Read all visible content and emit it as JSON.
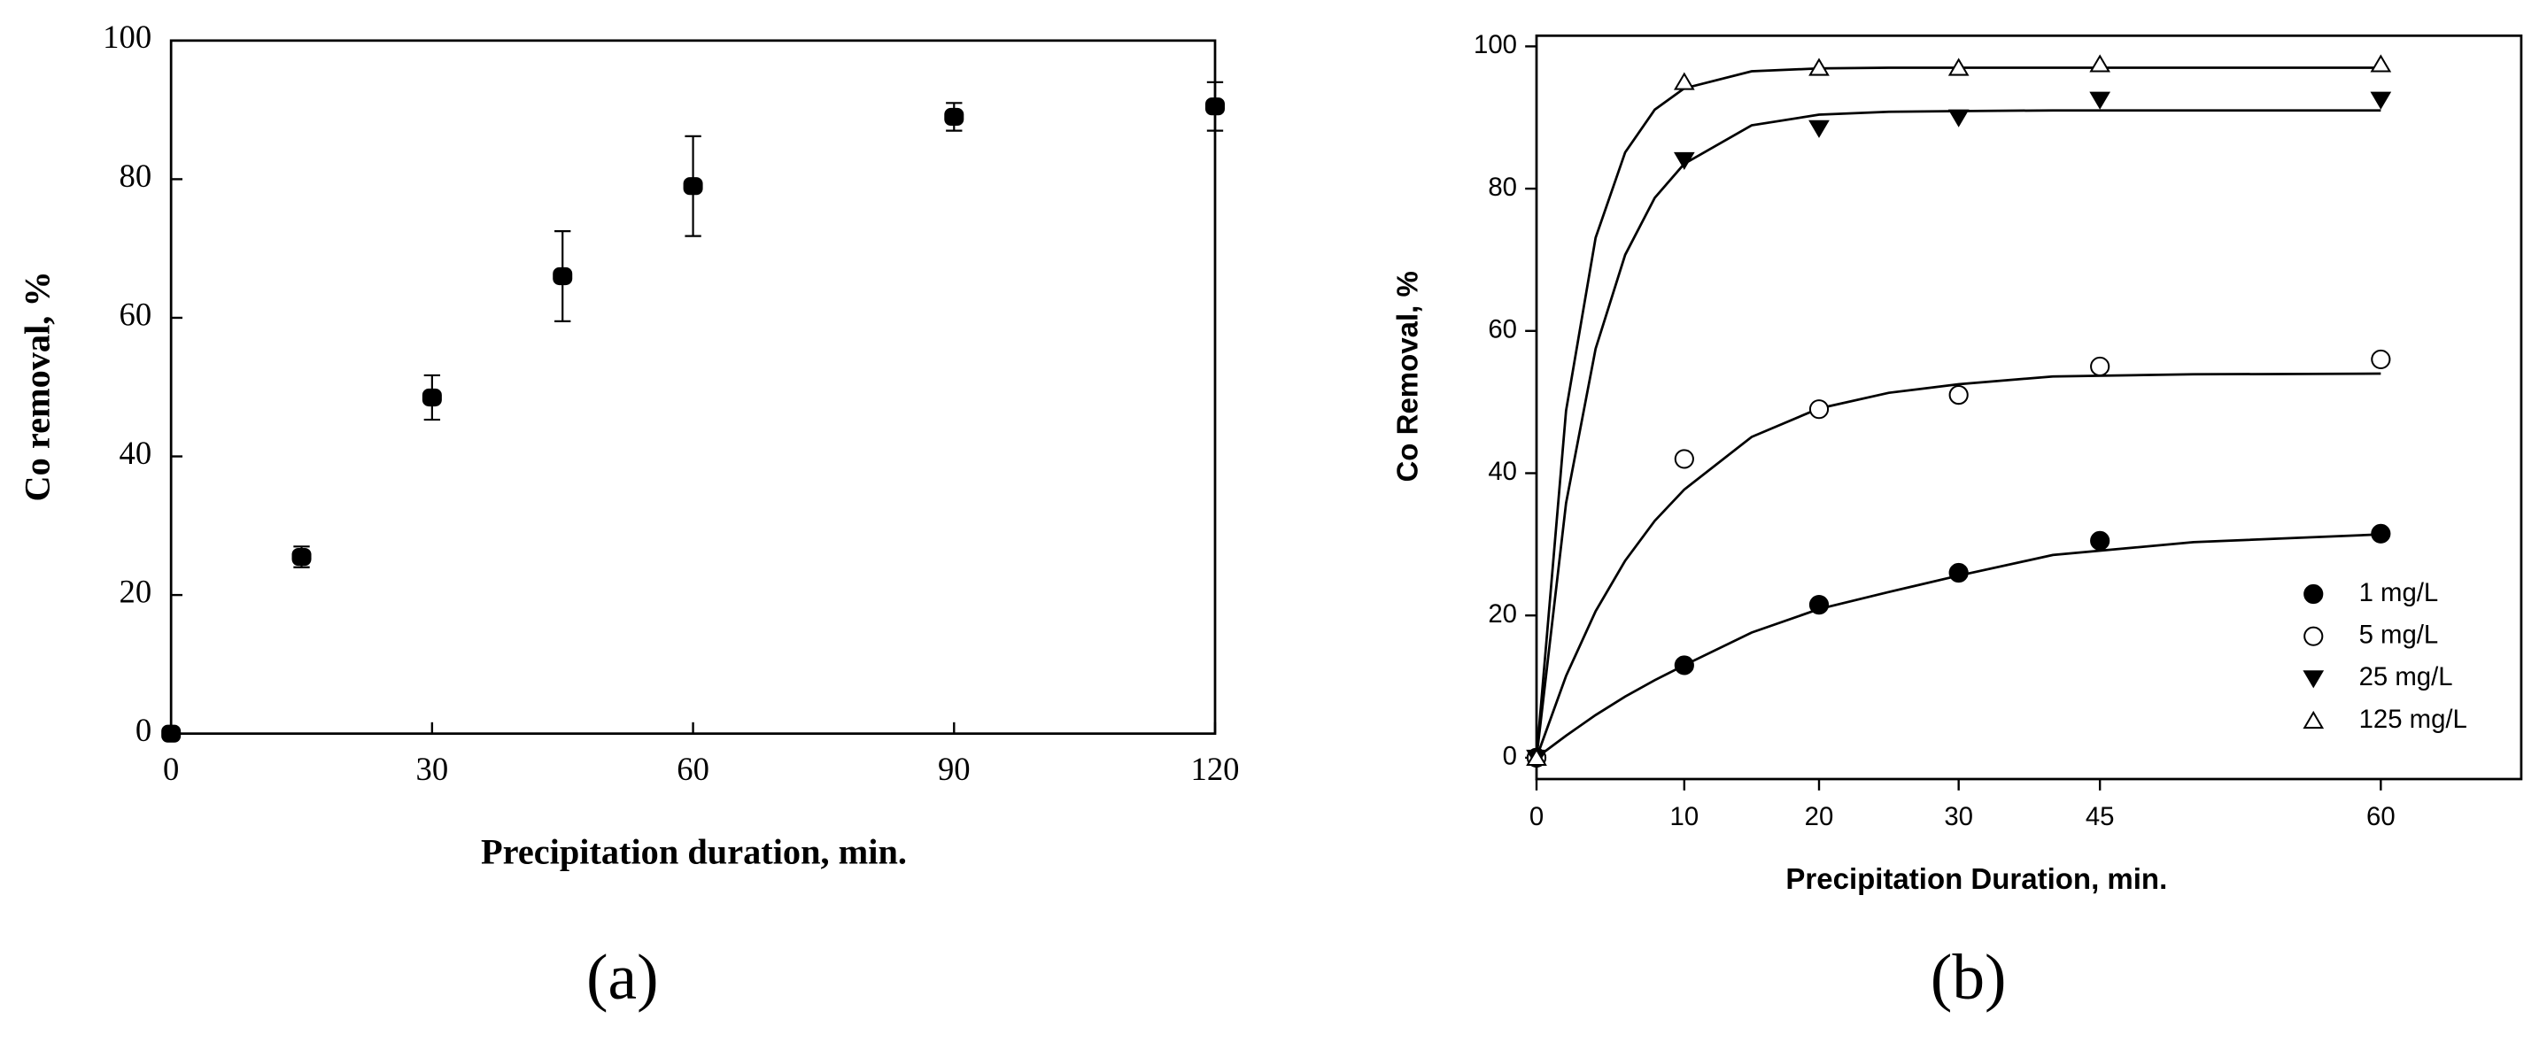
{
  "chart_data": [
    {
      "type": "scatter",
      "caption": "(a)",
      "x_label": "Precipitation duration, min.",
      "y_label": "Co removal, %",
      "x": [
        0,
        15,
        30,
        45,
        60,
        90,
        120
      ],
      "values": [
        0,
        25.5,
        48.5,
        66,
        79,
        89,
        90.5
      ],
      "errors": [
        0,
        1.5,
        3.2,
        6.5,
        7.2,
        2,
        3.5
      ],
      "color": "#000000",
      "xlim": [
        0,
        120
      ],
      "xticks": [
        0,
        30,
        60,
        90,
        120
      ],
      "ylim": [
        0,
        100
      ],
      "yticks": [
        0,
        20,
        40,
        60,
        80,
        100
      ]
    },
    {
      "type": "scatter",
      "caption": "(b)",
      "x_label": "Precipitation Duration, min.",
      "y_label": "Co Removal, %",
      "x": [
        0,
        10,
        20,
        30,
        45,
        60
      ],
      "fit_x": [
        0,
        2,
        4,
        6,
        8,
        10,
        15,
        20,
        25,
        30,
        40,
        50,
        60
      ],
      "series": [
        {
          "name": "1 mg/L",
          "color": "#000000",
          "marker": "circle-filled",
          "values": [
            0,
            13,
            21.5,
            26,
            30.5,
            31.5
          ],
          "fit_values": [
            0,
            3.1,
            6.0,
            8.6,
            10.9,
            13.0,
            17.6,
            20.9,
            23.3,
            25.6,
            28.5,
            30.3,
            31.4
          ]
        },
        {
          "name": "5 mg/L",
          "color": "#000000",
          "marker": "circle-open",
          "values": [
            0,
            42,
            49,
            51,
            55,
            56
          ],
          "fit_values": [
            0,
            11.5,
            20.6,
            27.7,
            33.3,
            37.7,
            45.1,
            49.1,
            51.3,
            52.5,
            53.6,
            53.9,
            54.0
          ]
        },
        {
          "name": "25 mg/L",
          "color": "#000000",
          "marker": "triangle-down-filled",
          "values": [
            0,
            84,
            88.5,
            90,
            92.5,
            92.5
          ],
          "fit_values": [
            0,
            35.8,
            57.5,
            70.7,
            78.7,
            83.5,
            88.9,
            90.4,
            90.8,
            90.9,
            91,
            91,
            91
          ]
        },
        {
          "name": "125 mg/L",
          "color": "#000000",
          "marker": "triangle-up-open",
          "values": [
            0,
            95,
            97,
            97,
            97.5,
            97.5
          ],
          "fit_values": [
            0,
            48.8,
            73.1,
            85.1,
            91.1,
            94.1,
            96.5,
            96.9,
            97,
            97,
            97,
            97,
            97
          ]
        }
      ],
      "legend": "lower right",
      "xlim": [
        0,
        67.5
      ],
      "xticks": [
        0,
        10,
        20,
        30,
        45,
        60
      ],
      "ylim": [
        -3,
        101.5
      ],
      "yticks": [
        0,
        20,
        40,
        60,
        80,
        100
      ]
    }
  ]
}
